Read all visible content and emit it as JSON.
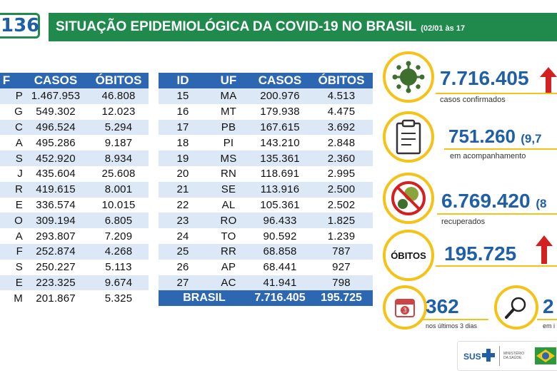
{
  "header": {
    "number": "136",
    "title": "SITUAÇÃO EPIDEMIOLÓGICA DA COVID-19 NO BRASIL",
    "date_range": "(02/01 às 17"
  },
  "table_left": {
    "headers": [
      "F",
      "CASOS",
      "ÓBITOS"
    ],
    "rows": [
      [
        "P",
        "1.467.953",
        "46.808"
      ],
      [
        "G",
        "549.302",
        "12.023"
      ],
      [
        "C",
        "496.524",
        "5.294"
      ],
      [
        "A",
        "495.286",
        "9.187"
      ],
      [
        "S",
        "452.920",
        "8.934"
      ],
      [
        "J",
        "435.604",
        "25.608"
      ],
      [
        "R",
        "419.615",
        "8.001"
      ],
      [
        "E",
        "336.574",
        "10.015"
      ],
      [
        "O",
        "309.194",
        "6.805"
      ],
      [
        "A",
        "293.807",
        "7.209"
      ],
      [
        "F",
        "252.874",
        "4.268"
      ],
      [
        "S",
        "250.227",
        "5.113"
      ],
      [
        "E",
        "223.325",
        "9.674"
      ],
      [
        "M",
        "201.867",
        "5.325"
      ]
    ]
  },
  "table_right": {
    "headers": [
      "ID",
      "UF",
      "CASOS",
      "ÓBITOS"
    ],
    "rows": [
      [
        "15",
        "MA",
        "200.976",
        "4.513"
      ],
      [
        "16",
        "MT",
        "179.938",
        "4.475"
      ],
      [
        "17",
        "PB",
        "167.615",
        "3.692"
      ],
      [
        "18",
        "PI",
        "143.210",
        "2.848"
      ],
      [
        "19",
        "MS",
        "135.361",
        "2.360"
      ],
      [
        "20",
        "RN",
        "118.691",
        "2.995"
      ],
      [
        "21",
        "SE",
        "113.916",
        "2.500"
      ],
      [
        "22",
        "AL",
        "105.361",
        "2.502"
      ],
      [
        "23",
        "RO",
        "96.433",
        "1.825"
      ],
      [
        "24",
        "TO",
        "90.592",
        "1.239"
      ],
      [
        "25",
        "RR",
        "68.858",
        "787"
      ],
      [
        "26",
        "AP",
        "68.441",
        "927"
      ],
      [
        "27",
        "AC",
        "41.941",
        "798"
      ]
    ],
    "total": {
      "label": "BRASIL",
      "casos": "7.716.405",
      "obitos": "195.725"
    }
  },
  "stats": {
    "confirmed": {
      "value": "7.716.405",
      "label": "casos confirmados"
    },
    "monitoring": {
      "value": "751.260",
      "pct": "(9,7",
      "label": "em acompanhamento"
    },
    "recovered": {
      "value": "6.769.420",
      "pct": "(8",
      "label": "recuperados"
    },
    "deaths": {
      "badge": "ÓBITOS",
      "value": "195.725"
    },
    "last3days": {
      "value": "362",
      "label": "nos últimos 3 dias",
      "calendar_day": "3"
    },
    "investigation": {
      "value": "2",
      "label": "em i"
    }
  },
  "logos": {
    "sus": "SUS",
    "ministry": "MINISTÉRIO DA SAÚDE"
  },
  "colors": {
    "green": "#1f8a4c",
    "blue": "#2e67b1",
    "yellow": "#f3c317",
    "red": "#d32020",
    "row_alt": "#dce8f5"
  }
}
